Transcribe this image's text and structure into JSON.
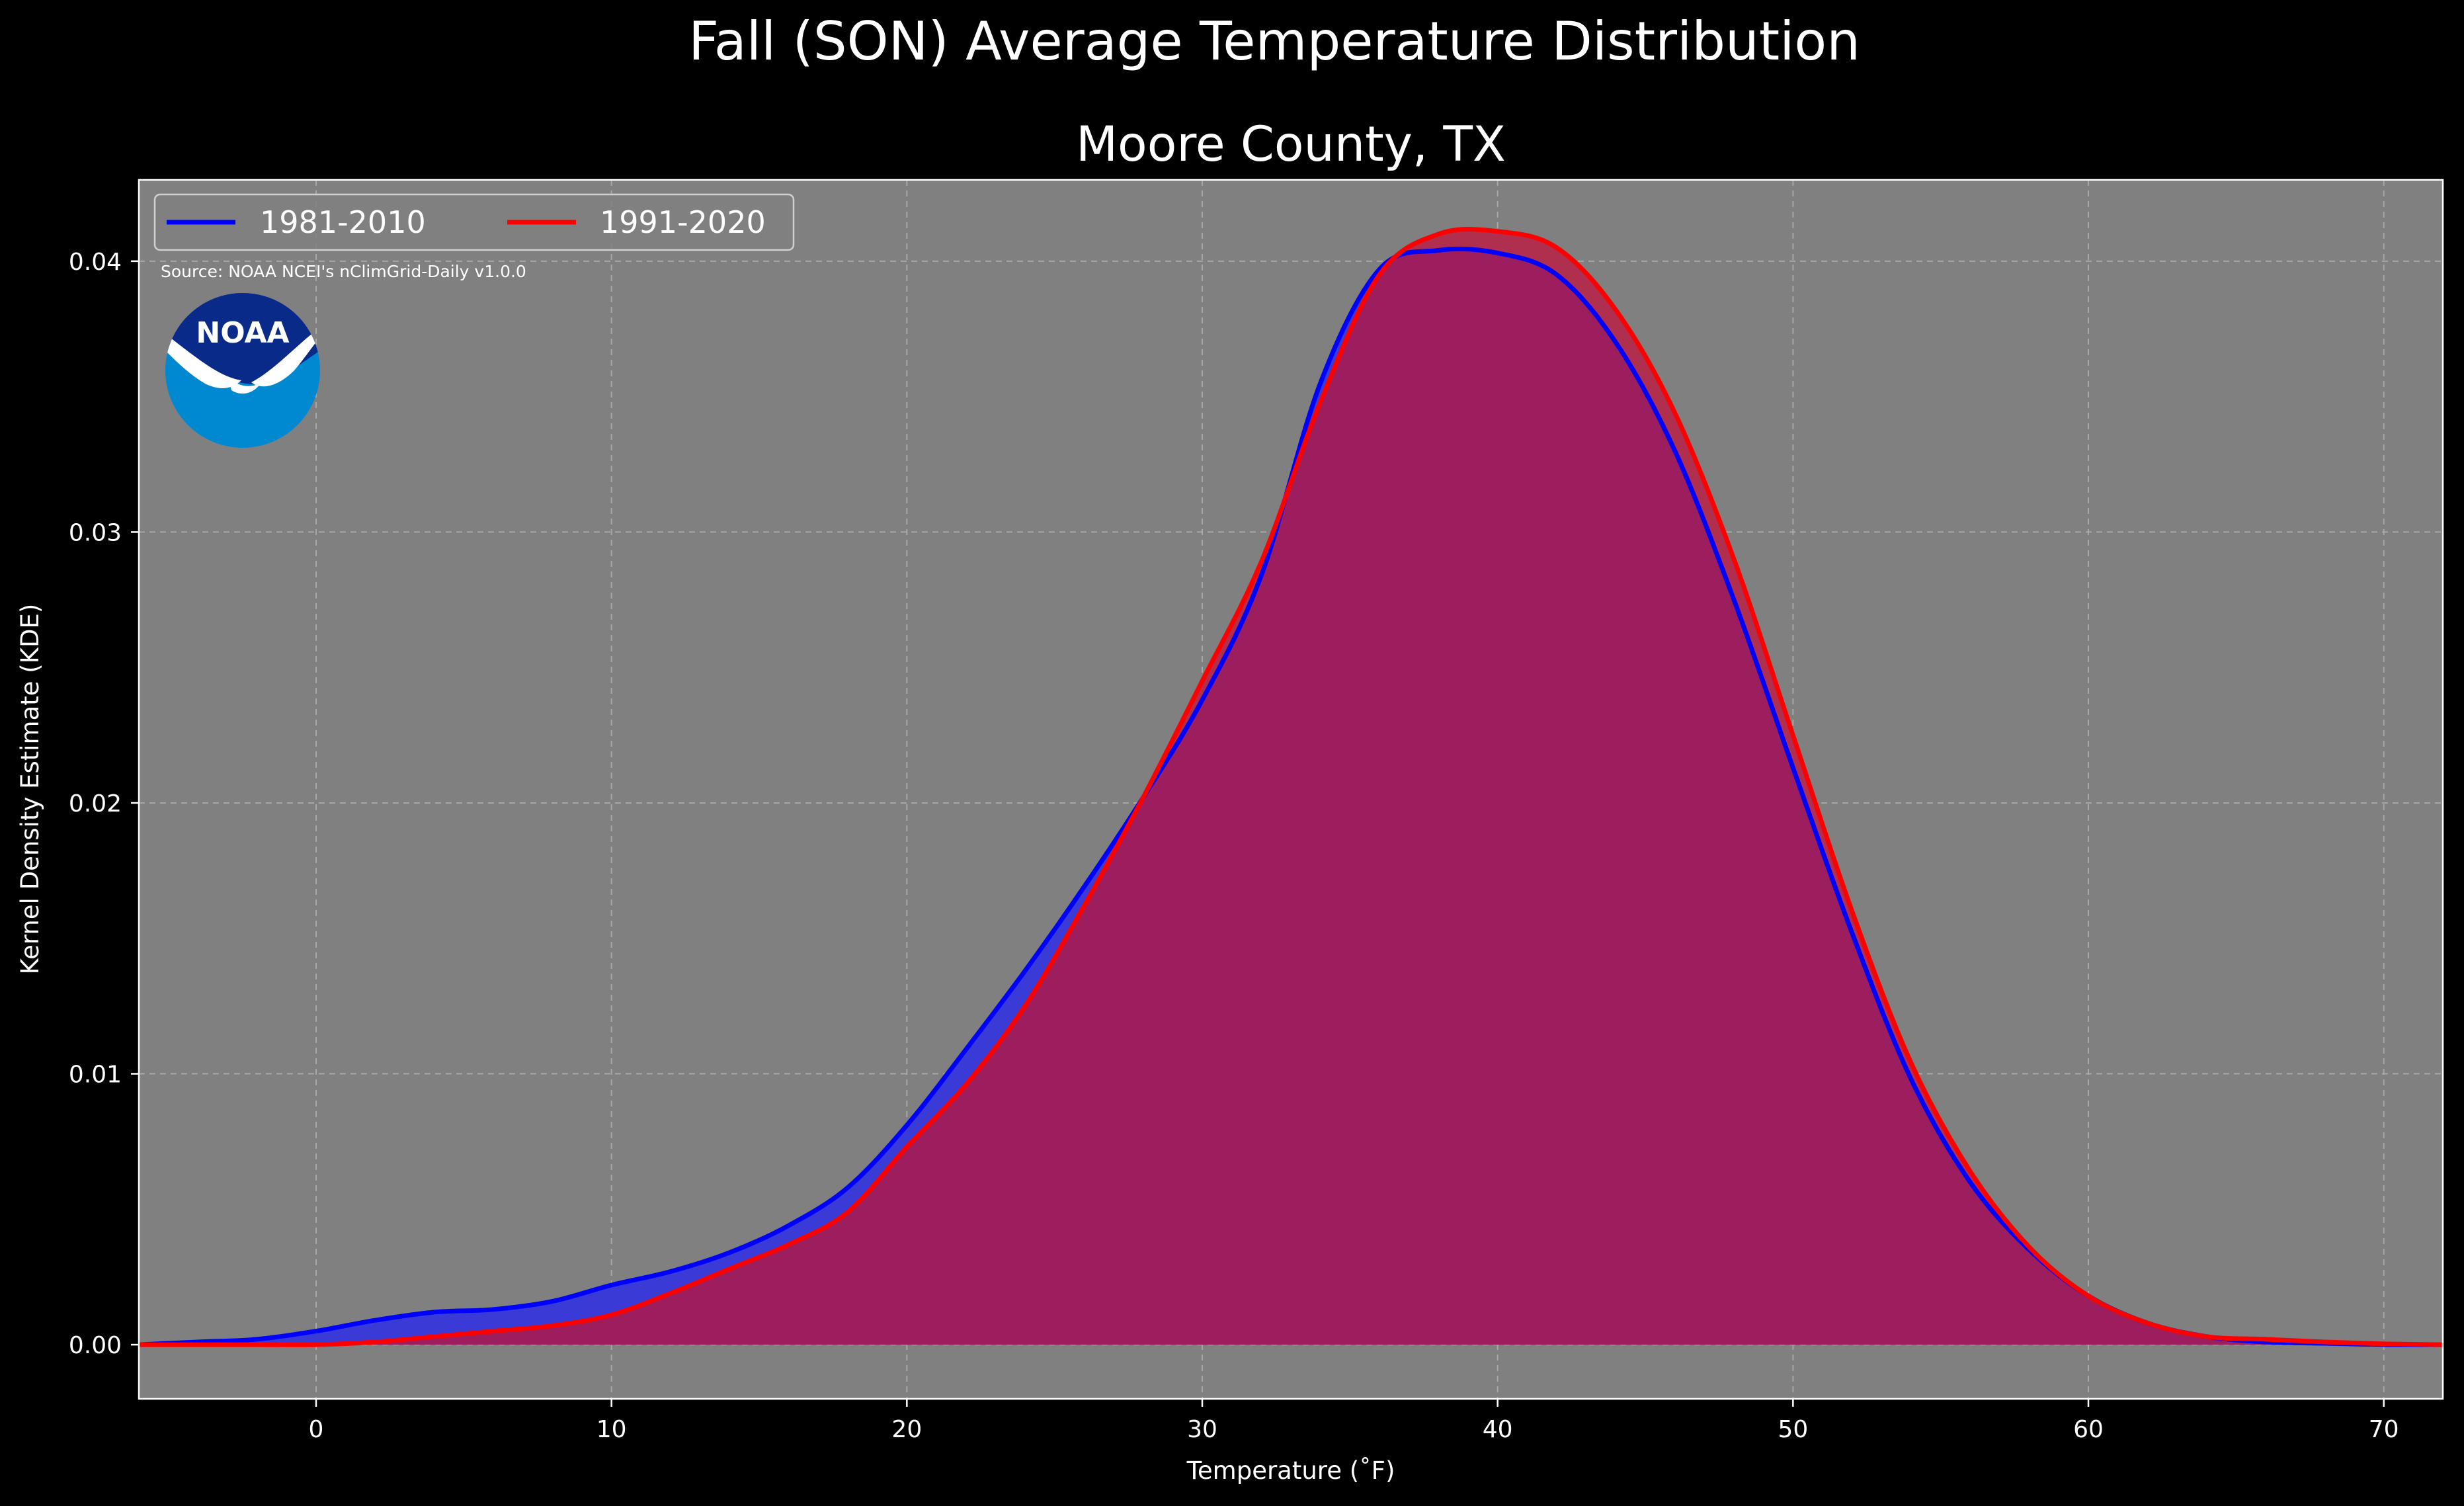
{
  "chart_data": {
    "type": "area",
    "title": "Fall (SON) Average Temperature Distribution",
    "subtitle": "Moore County, TX",
    "xlabel": "Temperature ($^\\circ$F)",
    "xlabel_display": "Temperature (˚F)",
    "ylabel": "Kernel Density Estimate (KDE)",
    "source": "Source: NOAA NCEI's nClimGrid-Daily v1.0.0",
    "logo_text": "NOAA",
    "xlim": [
      -6,
      72
    ],
    "ylim": [
      -0.002,
      0.043
    ],
    "xticks": [
      0,
      10,
      20,
      30,
      40,
      50,
      60,
      70
    ],
    "xtick_labels": [
      "0",
      "10",
      "20",
      "30",
      "40",
      "50",
      "60",
      "70"
    ],
    "yticks": [
      0,
      0.01,
      0.02,
      0.03,
      0.04
    ],
    "ytick_labels": [
      "0.00",
      "0.01",
      "0.02",
      "0.03",
      "0.04"
    ],
    "grid": true,
    "legend_position": "upper-left",
    "x": [
      -6,
      -4,
      -2,
      0,
      2,
      4,
      6,
      8,
      10,
      12,
      14,
      16,
      18,
      20,
      22,
      24,
      26,
      28,
      30,
      32,
      34,
      36,
      38,
      40,
      42,
      44,
      46,
      48,
      50,
      52,
      54,
      56,
      58,
      60,
      62,
      64,
      66,
      68,
      70,
      72
    ],
    "series": [
      {
        "name": "1981-2010",
        "color": "#0000ff",
        "fill": "#3a3ad6",
        "values": [
          0.0,
          0.0001,
          0.0002,
          0.0005,
          0.0009,
          0.0012,
          0.0013,
          0.0016,
          0.0022,
          0.0027,
          0.0034,
          0.0044,
          0.0058,
          0.0081,
          0.0109,
          0.0138,
          0.0169,
          0.0202,
          0.0238,
          0.0284,
          0.0355,
          0.0397,
          0.0404,
          0.0403,
          0.0395,
          0.037,
          0.033,
          0.0275,
          0.0213,
          0.0152,
          0.0098,
          0.006,
          0.0035,
          0.0018,
          0.0008,
          0.0003,
          0.0001,
          5e-05,
          0.0,
          0.0
        ]
      },
      {
        "name": "1991-2020",
        "color": "#ff0000",
        "fill": "#b02e4e",
        "values": [
          0.0,
          0.0,
          0.0,
          0.0,
          0.0001,
          0.0003,
          0.0005,
          0.0007,
          0.0011,
          0.0019,
          0.0028,
          0.0037,
          0.0049,
          0.0073,
          0.0096,
          0.0125,
          0.0162,
          0.0202,
          0.0245,
          0.0289,
          0.0348,
          0.0395,
          0.041,
          0.0411,
          0.0405,
          0.0382,
          0.0344,
          0.029,
          0.0225,
          0.016,
          0.0104,
          0.0064,
          0.0036,
          0.0018,
          0.0008,
          0.0003,
          0.0002,
          0.0001,
          3e-05,
          0.0
        ]
      }
    ]
  },
  "colors": {
    "figure_background": "#000000",
    "axes_background": "#808080",
    "grid": "#b4b4b4",
    "text": "#ffffff",
    "overlap_fill": "#9c1e5e",
    "logo_top": "#0a2a8a",
    "logo_bottom": "#0088d1"
  }
}
